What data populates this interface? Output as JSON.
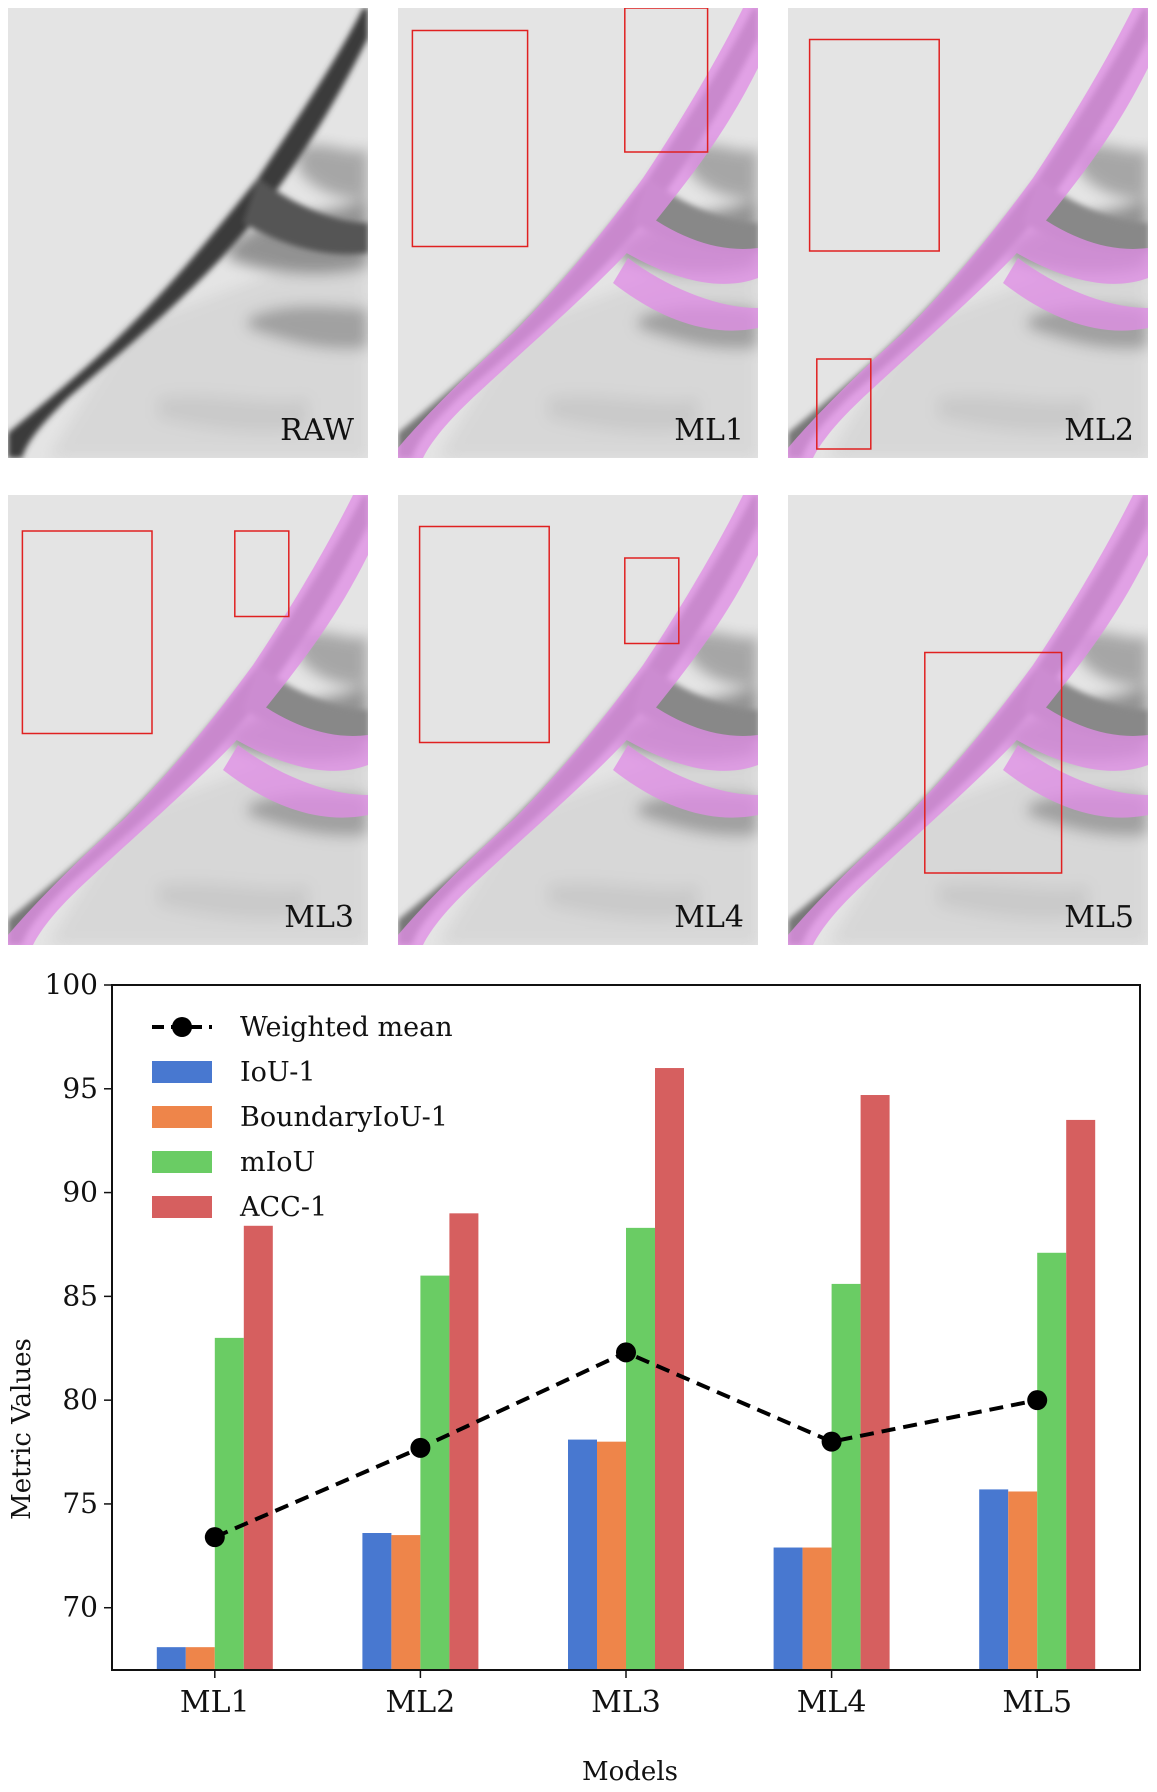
{
  "panels": [
    {
      "label": "RAW",
      "mask": false,
      "boxes": []
    },
    {
      "label": "ML1",
      "mask": true,
      "boxes": [
        [
          0.04,
          0.05,
          0.36,
          0.53
        ],
        [
          0.63,
          0.0,
          0.86,
          0.32
        ]
      ]
    },
    {
      "label": "ML2",
      "mask": true,
      "boxes": [
        [
          0.06,
          0.07,
          0.42,
          0.54
        ],
        [
          0.08,
          0.78,
          0.23,
          0.98
        ]
      ]
    },
    {
      "label": "ML3",
      "mask": true,
      "boxes": [
        [
          0.04,
          0.08,
          0.4,
          0.53
        ],
        [
          0.63,
          0.08,
          0.78,
          0.27
        ]
      ]
    },
    {
      "label": "ML4",
      "mask": true,
      "boxes": [
        [
          0.06,
          0.07,
          0.42,
          0.55
        ],
        [
          0.63,
          0.14,
          0.78,
          0.33
        ]
      ]
    },
    {
      "label": "ML5",
      "mask": true,
      "boxes": [
        [
          0.38,
          0.35,
          0.76,
          0.84
        ]
      ]
    }
  ],
  "chart_data": {
    "type": "bar",
    "categories": [
      "ML1",
      "ML2",
      "ML3",
      "ML4",
      "ML5"
    ],
    "series": [
      {
        "name": "IoU-1",
        "color": "#4878d0",
        "values": [
          68.1,
          73.6,
          78.1,
          72.9,
          75.7
        ]
      },
      {
        "name": "BoundaryIoU-1",
        "color": "#ee854a",
        "values": [
          68.1,
          73.5,
          78.0,
          72.9,
          75.6
        ]
      },
      {
        "name": "mIoU",
        "color": "#6acc64",
        "values": [
          83.0,
          86.0,
          88.3,
          85.6,
          87.1
        ]
      },
      {
        "name": "ACC-1",
        "color": "#d65f5f",
        "values": [
          88.4,
          89.0,
          96.0,
          94.7,
          93.5
        ]
      }
    ],
    "line": {
      "name": "Weighted mean",
      "color": "#000000",
      "values": [
        73.4,
        77.7,
        82.3,
        78.0,
        80.0
      ]
    },
    "xlabel": "Models",
    "ylabel": "Metric Values",
    "ylim": [
      67,
      100
    ],
    "yticks": [
      70,
      75,
      80,
      85,
      90,
      95,
      100
    ],
    "legend": "top-left",
    "grid": false
  }
}
